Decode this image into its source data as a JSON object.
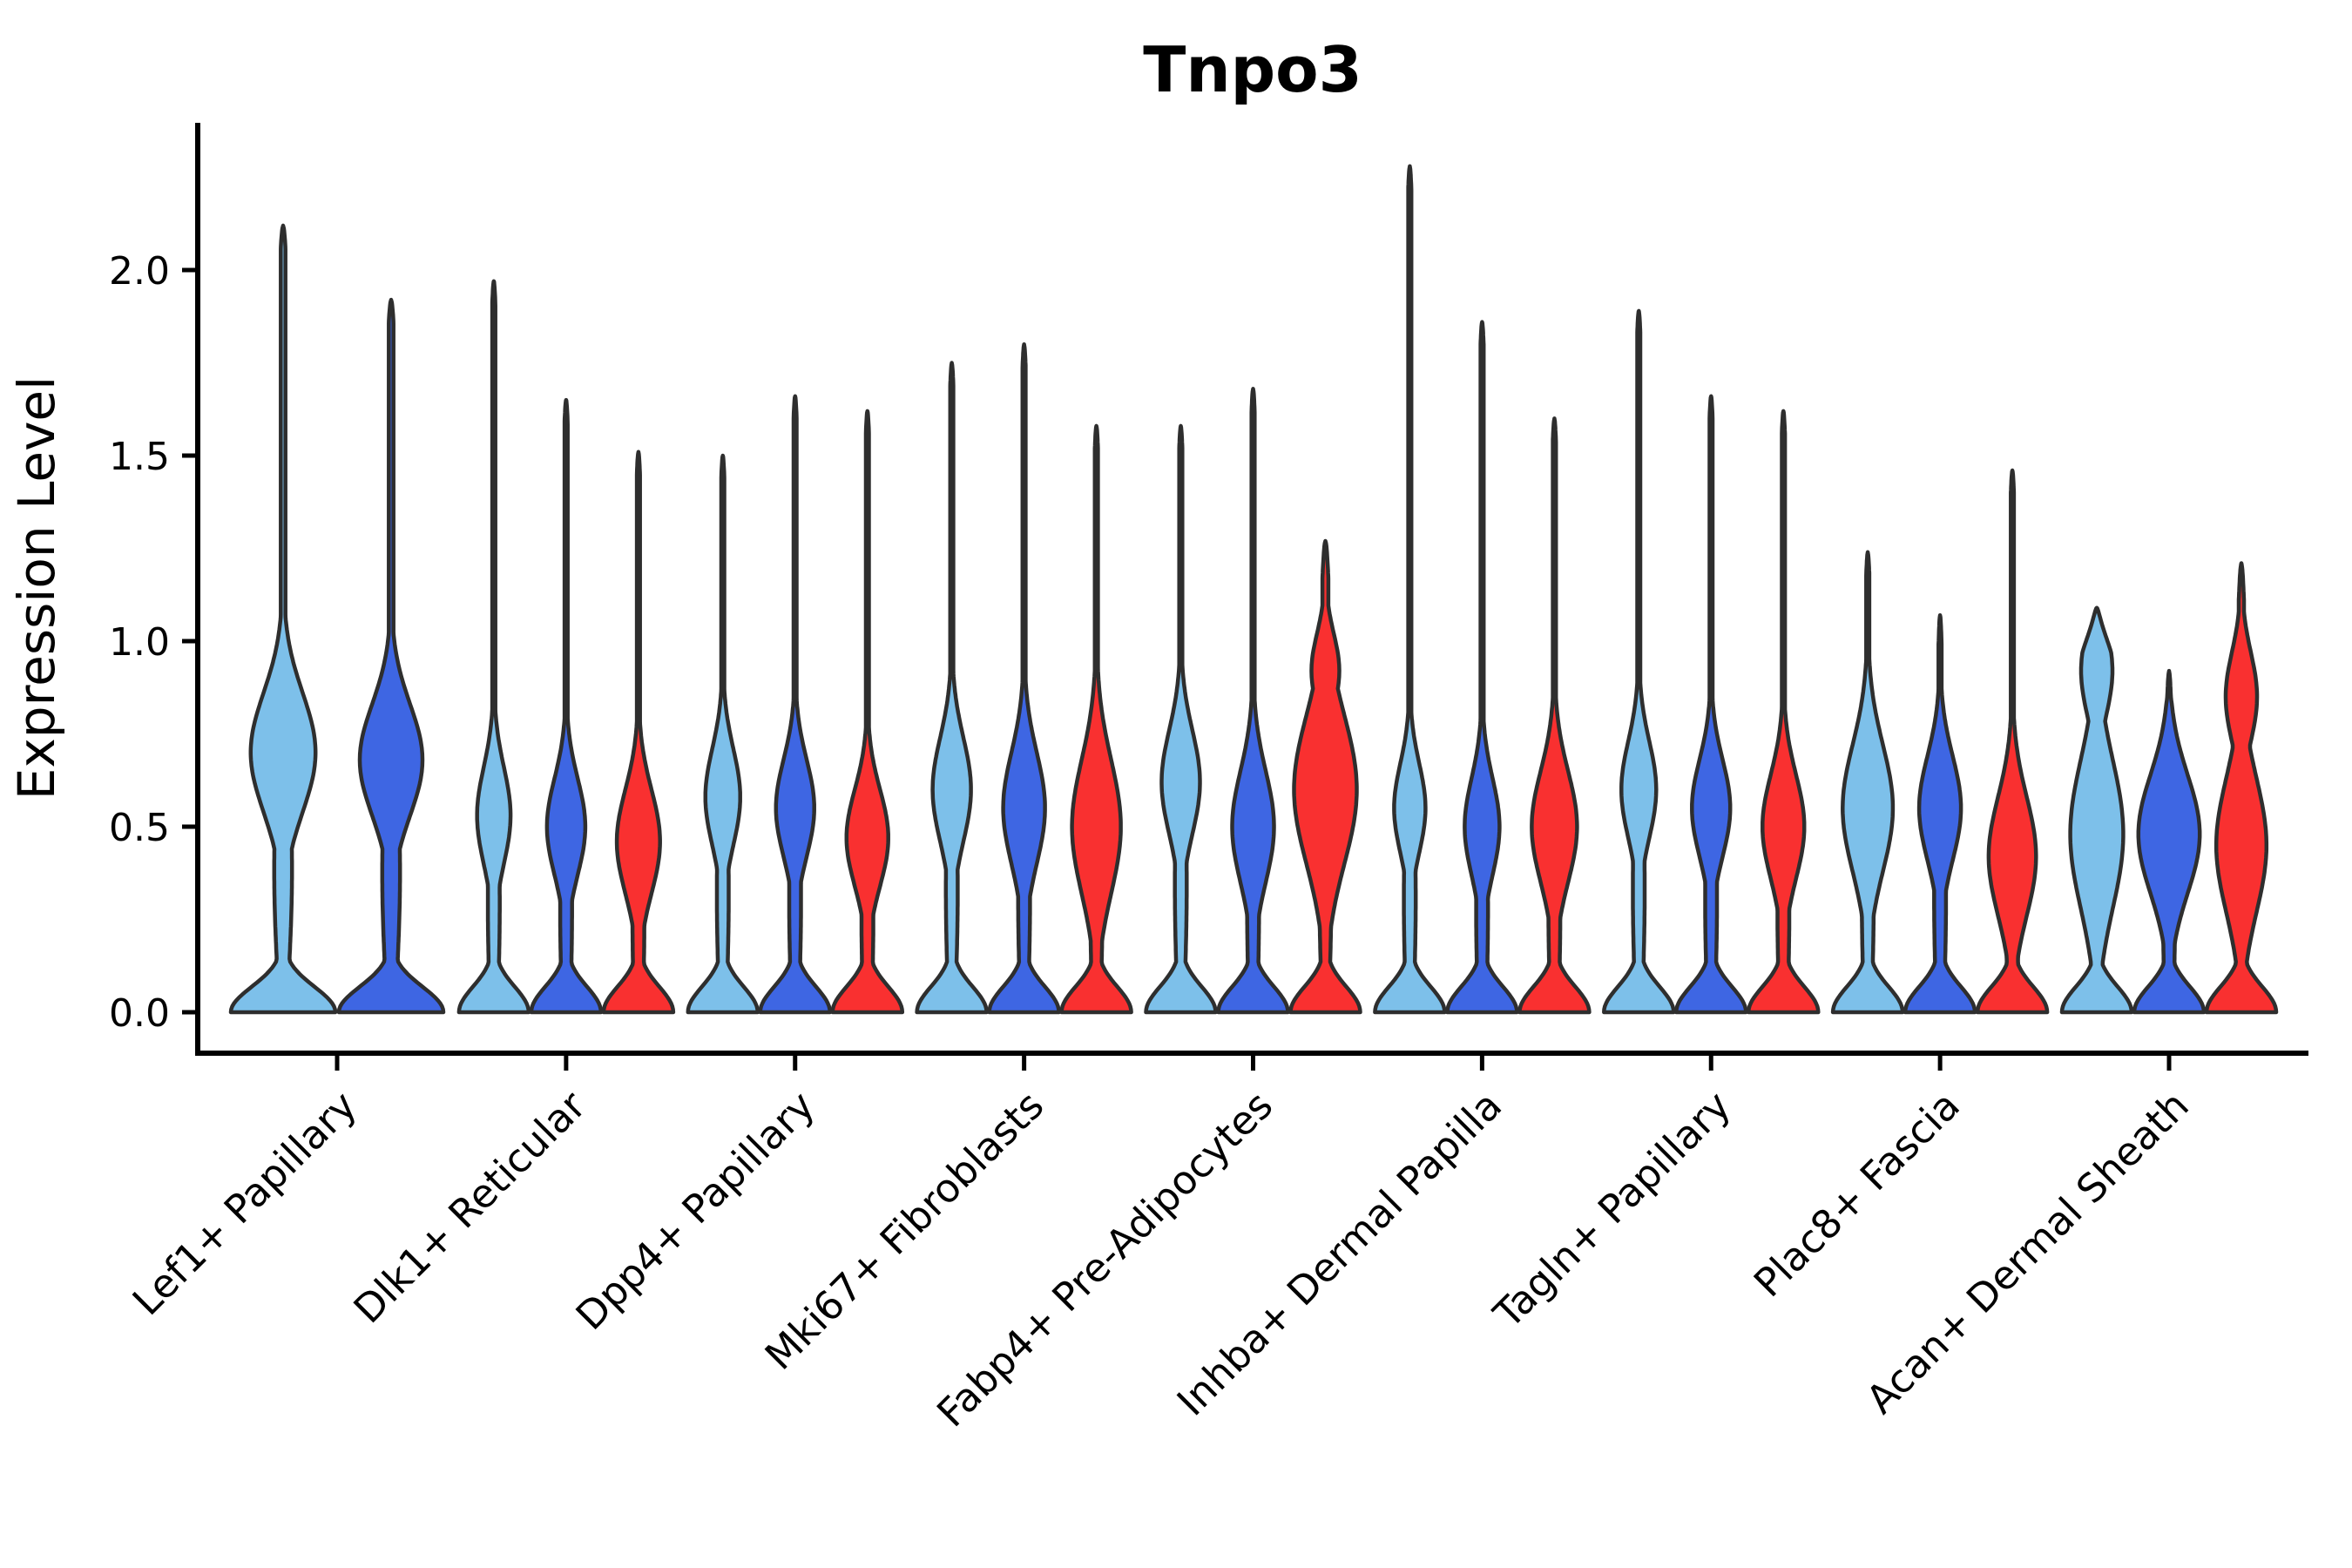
{
  "title": "Tnpo3",
  "y_axis": {
    "label": "Expression Level",
    "tick_labels": [
      "0.0",
      "0.5",
      "1.0",
      "1.5",
      "2.0"
    ],
    "tick_values": [
      0.0,
      0.5,
      1.0,
      1.5,
      2.0
    ]
  },
  "colors": {
    "background": "#FFFFFF",
    "text": "#000000",
    "outline": "#2E2E2E",
    "light_blue": "#7DC0EA",
    "royal_blue": "#3E66E3",
    "red": "#F93030"
  },
  "chart_data": {
    "type": "violin",
    "title": "Tnpo3",
    "xlabel": "",
    "ylabel": "Expression Level",
    "ylim": [
      0,
      2.4
    ],
    "grid": false,
    "legend_position": "none",
    "categories": [
      "Lef1+ Papillary",
      "Dlk1+ Reticular",
      "Dpp4+ Papillary",
      "Mki67+ Fibroblasts",
      "Fabp4+ Pre-Adipocytes",
      "Inhba+ Dermal Papilla",
      "Tagln+ Papillary",
      "Plac8+ Fascia",
      "Acan+ Dermal Sheath"
    ],
    "series": [
      {
        "name": "light-blue",
        "color": "#7DC0EA",
        "max_expression": [
          2.12,
          1.97,
          1.5,
          1.75,
          1.58,
          2.28,
          1.89,
          1.24,
          1.09
        ]
      },
      {
        "name": "royal-blue",
        "color": "#3E66E3",
        "max_expression": [
          1.92,
          1.65,
          1.66,
          1.8,
          1.68,
          1.86,
          1.66,
          1.07,
          0.92
        ]
      },
      {
        "name": "red",
        "color": "#F93030",
        "max_expression": [
          null,
          1.51,
          1.62,
          1.58,
          1.27,
          1.6,
          1.62,
          1.46,
          1.21
        ]
      }
    ],
    "violins": [
      {
        "cat": 0,
        "series": 0,
        "top": 2.12,
        "bulges": [
          [
            0.7,
            0.16,
            0.62
          ]
        ]
      },
      {
        "cat": 0,
        "series": 1,
        "top": 1.92,
        "bulges": [
          [
            0.68,
            0.15,
            0.6
          ]
        ]
      },
      {
        "cat": 1,
        "series": 0,
        "top": 1.97,
        "bulges": [
          [
            0.53,
            0.13,
            0.48
          ]
        ]
      },
      {
        "cat": 1,
        "series": 1,
        "top": 1.65,
        "bulges": [
          [
            0.5,
            0.13,
            0.55
          ]
        ]
      },
      {
        "cat": 1,
        "series": 2,
        "top": 1.51,
        "bulges": [
          [
            0.46,
            0.14,
            0.62
          ]
        ]
      },
      {
        "cat": 2,
        "series": 0,
        "top": 1.5,
        "bulges": [
          [
            0.58,
            0.13,
            0.5
          ]
        ]
      },
      {
        "cat": 2,
        "series": 1,
        "top": 1.66,
        "bulges": [
          [
            0.55,
            0.13,
            0.55
          ]
        ]
      },
      {
        "cat": 2,
        "series": 2,
        "top": 1.62,
        "bulges": [
          [
            0.47,
            0.13,
            0.6
          ]
        ]
      },
      {
        "cat": 3,
        "series": 0,
        "top": 1.75,
        "bulges": [
          [
            0.6,
            0.14,
            0.55
          ]
        ]
      },
      {
        "cat": 3,
        "series": 1,
        "top": 1.8,
        "bulges": [
          [
            0.55,
            0.15,
            0.6
          ]
        ]
      },
      {
        "cat": 3,
        "series": 2,
        "top": 1.58,
        "bulges": [
          [
            0.5,
            0.18,
            0.7
          ]
        ]
      },
      {
        "cat": 4,
        "series": 0,
        "top": 1.58,
        "bulges": [
          [
            0.62,
            0.14,
            0.55
          ]
        ]
      },
      {
        "cat": 4,
        "series": 1,
        "top": 1.68,
        "bulges": [
          [
            0.5,
            0.15,
            0.6
          ]
        ]
      },
      {
        "cat": 4,
        "series": 2,
        "top": 1.27,
        "bulges": [
          [
            0.6,
            0.2,
            0.9
          ],
          [
            0.92,
            0.1,
            0.4
          ]
        ],
        "spike": 0.085,
        "cap": 0.1
      },
      {
        "cat": 5,
        "series": 0,
        "top": 2.28,
        "bulges": [
          [
            0.55,
            0.12,
            0.45
          ]
        ]
      },
      {
        "cat": 5,
        "series": 1,
        "top": 1.86,
        "bulges": [
          [
            0.5,
            0.13,
            0.5
          ]
        ]
      },
      {
        "cat": 5,
        "series": 2,
        "top": 1.6,
        "bulges": [
          [
            0.5,
            0.15,
            0.65
          ]
        ]
      },
      {
        "cat": 6,
        "series": 0,
        "top": 1.89,
        "bulges": [
          [
            0.6,
            0.13,
            0.5
          ]
        ]
      },
      {
        "cat": 6,
        "series": 1,
        "top": 1.66,
        "bulges": [
          [
            0.55,
            0.13,
            0.55
          ]
        ]
      },
      {
        "cat": 6,
        "series": 2,
        "top": 1.62,
        "bulges": [
          [
            0.5,
            0.14,
            0.6
          ]
        ]
      },
      {
        "cat": 7,
        "series": 0,
        "top": 1.24,
        "bulges": [
          [
            0.55,
            0.17,
            0.72
          ]
        ]
      },
      {
        "cat": 7,
        "series": 1,
        "top": 1.07,
        "bulges": [
          [
            0.55,
            0.14,
            0.6
          ]
        ],
        "cap": 0.08
      },
      {
        "cat": 7,
        "series": 2,
        "top": 1.46,
        "bulges": [
          [
            0.42,
            0.16,
            0.68
          ]
        ]
      },
      {
        "cat": 8,
        "series": 0,
        "top": 1.09,
        "bulges": [
          [
            0.48,
            0.2,
            0.76
          ],
          [
            0.92,
            0.12,
            0.45
          ]
        ],
        "spike": 0.06,
        "cap": 0.12
      },
      {
        "cat": 8,
        "series": 1,
        "top": 0.92,
        "bulges": [
          [
            0.48,
            0.16,
            0.88
          ]
        ],
        "spike": 0.06,
        "cap": 0.09
      },
      {
        "cat": 8,
        "series": 2,
        "top": 1.21,
        "bulges": [
          [
            0.45,
            0.18,
            0.72
          ],
          [
            0.85,
            0.12,
            0.45
          ]
        ],
        "spike": 0.075,
        "cap": 0.1
      }
    ]
  }
}
